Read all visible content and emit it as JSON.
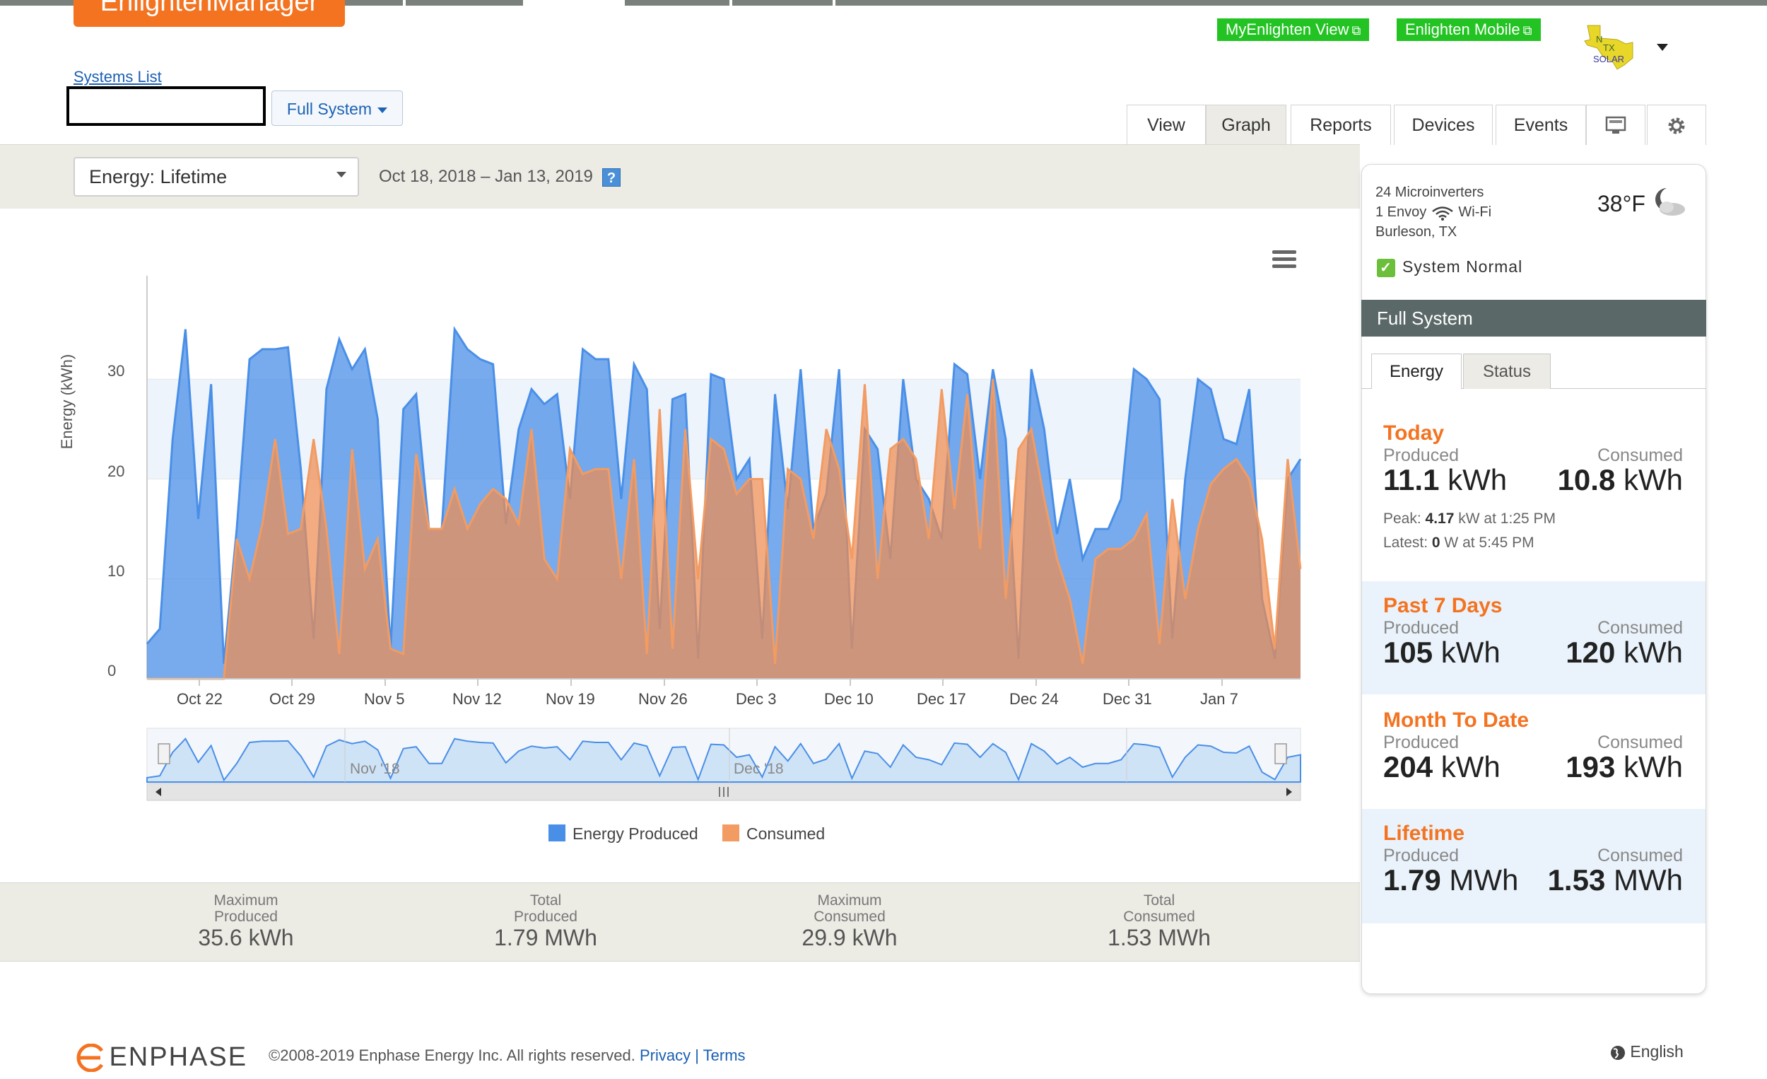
{
  "header": {
    "brand_text": "EnlightenManager",
    "links": [
      "MyEnlighten View",
      "Enlighten Mobile"
    ],
    "systems_list": "Systems List",
    "system_selector": "Full System",
    "logo_alt": "N TX SOLAR",
    "tabs": [
      "View",
      "Graph",
      "Reports",
      "Devices",
      "Events"
    ],
    "active_tab": "Graph"
  },
  "filters": {
    "mode": "Energy: Lifetime",
    "date_range": "Oct 18, 2018 – Jan 13, 2019",
    "help": "?"
  },
  "chart_data": {
    "type": "area",
    "ylabel": "Energy (kWh)",
    "yticks": [
      "0",
      "10",
      "20",
      "30"
    ],
    "ylim": [
      0,
      40
    ],
    "xticks": [
      "Oct 22",
      "Oct 29",
      "Nov 5",
      "Nov 12",
      "Nov 19",
      "Nov 26",
      "Dec 3",
      "Dec 10",
      "Dec 17",
      "Dec 24",
      "Dec 31",
      "Jan 7"
    ],
    "x_start": "2018-10-18",
    "navigator_labels": [
      "Nov '18",
      "Dec '18"
    ],
    "legend": [
      "Energy Produced",
      "Consumed"
    ],
    "colors": {
      "produced": "#4a8fe7",
      "consumed": "#f29b62"
    },
    "series": [
      {
        "name": "Energy Produced",
        "values": [
          3.5,
          5,
          24,
          35,
          16,
          29.5,
          1.5,
          15,
          32,
          33,
          33,
          33.2,
          21,
          4,
          29,
          34,
          31,
          33,
          26,
          3,
          27,
          28.5,
          15,
          15,
          35,
          33,
          32,
          31.5,
          15.5,
          25,
          29,
          27.5,
          28.5,
          18,
          33,
          32,
          32,
          18,
          31.5,
          29,
          5,
          28,
          28.5,
          2,
          30.5,
          30,
          20,
          22,
          4,
          28.5,
          17,
          31,
          15,
          18.5,
          31,
          3,
          25,
          23,
          12,
          30,
          20,
          18,
          14,
          31.5,
          30.5,
          20,
          31,
          24,
          2,
          31,
          25,
          14.5,
          20,
          12,
          15,
          15,
          18,
          31,
          30,
          28,
          4,
          20,
          30,
          29,
          24,
          23.5,
          29,
          8,
          2,
          20,
          22
        ]
      },
      {
        "name": "Consumed",
        "values": [
          0,
          0,
          0,
          0,
          0,
          0,
          0,
          14,
          10,
          15.5,
          24,
          14.5,
          15,
          24,
          15,
          2.5,
          23,
          11,
          14,
          3,
          2.5,
          22.5,
          15,
          15,
          19,
          15,
          17.5,
          19,
          18,
          15.5,
          25,
          12,
          10,
          23,
          20.5,
          21,
          21,
          10,
          22,
          2.5,
          27,
          3,
          25,
          10,
          24,
          23,
          18.5,
          20,
          20,
          1.5,
          21,
          20,
          14,
          25,
          21,
          12,
          29.5,
          10,
          23,
          24,
          22,
          14,
          29,
          17,
          28.5,
          13,
          30,
          8,
          23,
          25,
          18,
          12,
          8,
          1.5,
          12,
          13,
          13,
          14,
          16.5,
          3.5,
          18,
          8,
          15,
          19.5,
          21,
          22,
          20,
          14,
          3,
          22,
          11
        ]
      }
    ]
  },
  "stats": [
    {
      "label1": "Maximum",
      "label2": "Produced",
      "value": "35.6",
      "unit": "kWh"
    },
    {
      "label1": "Total",
      "label2": "Produced",
      "value": "1.79",
      "unit": "MWh"
    },
    {
      "label1": "Maximum",
      "label2": "Consumed",
      "value": "29.9",
      "unit": "kWh"
    },
    {
      "label1": "Total",
      "label2": "Consumed",
      "value": "1.53",
      "unit": "MWh"
    }
  ],
  "panel": {
    "microinverters": "24 Microinverters",
    "envoy": "1 Envoy",
    "wifi": "Wi-Fi",
    "location": "Burleson, TX",
    "temperature": "38°F",
    "status": "System Normal",
    "heading": "Full System",
    "tabs": [
      "Energy",
      "Status"
    ],
    "blocks": [
      {
        "title": "Today",
        "produced_label": "Produced",
        "consumed_label": "Consumed",
        "produced": "11.1",
        "produced_unit": "kWh",
        "consumed": "10.8",
        "consumed_unit": "kWh"
      },
      {
        "title": "Past 7 Days",
        "produced_label": "Produced",
        "consumed_label": "Consumed",
        "produced": "105",
        "produced_unit": "kWh",
        "consumed": "120",
        "consumed_unit": "kWh"
      },
      {
        "title": "Month To Date",
        "produced_label": "Produced",
        "consumed_label": "Consumed",
        "produced": "204",
        "produced_unit": "kWh",
        "consumed": "193",
        "consumed_unit": "kWh"
      },
      {
        "title": "Lifetime",
        "produced_label": "Produced",
        "consumed_label": "Consumed",
        "produced": "1.79",
        "produced_unit": "MWh",
        "consumed": "1.53",
        "consumed_unit": "MWh"
      }
    ],
    "peak": {
      "label": "Peak:",
      "value": "4.17",
      "unit": "kW at 1:25 PM"
    },
    "latest": {
      "label": "Latest:",
      "value": "0",
      "unit": "W at 5:45 PM"
    }
  },
  "footer": {
    "brand": "ENPHASE",
    "copyright": "©2008-2019 Enphase Energy Inc. All rights reserved.",
    "privacy": "Privacy",
    "separator": "|",
    "terms": "Terms",
    "language": "English"
  }
}
